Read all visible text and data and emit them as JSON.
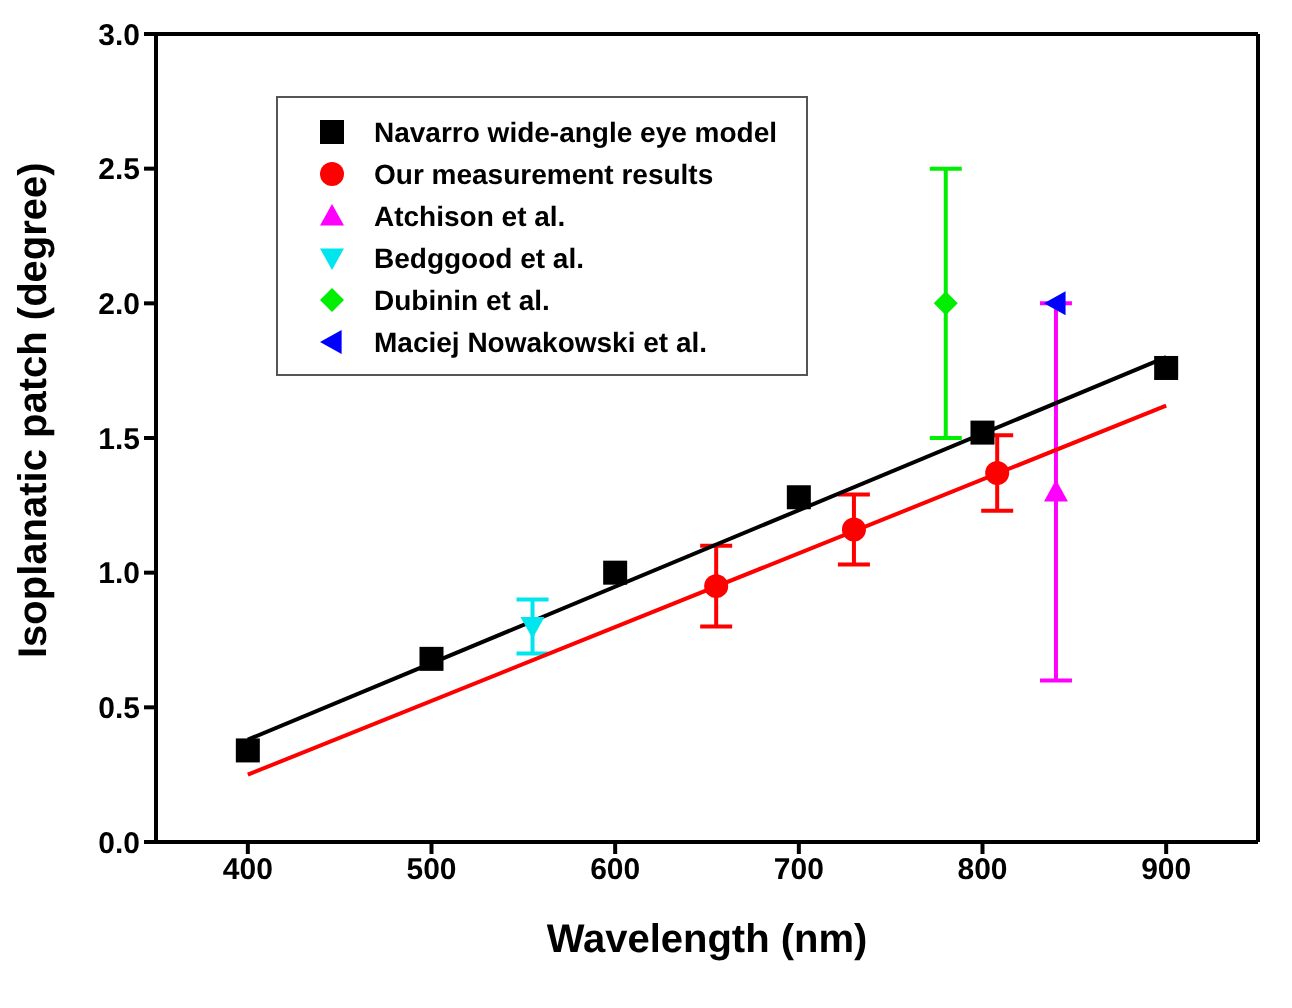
{
  "chart_data": {
    "type": "scatter",
    "xlabel": "Wavelength (nm)",
    "ylabel": "Isoplanatic patch (degree)",
    "xlim": [
      350,
      950
    ],
    "xticks": [
      400,
      500,
      600,
      700,
      800,
      900
    ],
    "ylim": [
      0,
      3
    ],
    "yticks": [
      {
        "value": 0,
        "label": "0.0"
      },
      {
        "value": 0.5,
        "label": "0.5"
      },
      {
        "value": 1,
        "label": "1.0"
      },
      {
        "value": 1.5,
        "label": "1.5"
      },
      {
        "value": 2,
        "label": "2.0"
      },
      {
        "value": 2.5,
        "label": "2.5"
      },
      {
        "value": 3,
        "label": "3.0"
      }
    ],
    "legend": "top left",
    "series": [
      {
        "name": "Navarro wide-angle eye model",
        "color": "#000000",
        "marker": "square",
        "x": [
          400,
          500,
          600,
          700,
          800,
          900
        ],
        "values": [
          0.34,
          0.68,
          1.0,
          1.28,
          1.52,
          1.76
        ]
      },
      {
        "name": "Our measurement results",
        "color": "#ff0000",
        "marker": "circle",
        "x": [
          655,
          730,
          808
        ],
        "values": [
          0.95,
          1.16,
          1.37
        ],
        "errors": [
          [
            0.8,
            1.1
          ],
          [
            1.03,
            1.29
          ],
          [
            1.23,
            1.51
          ]
        ]
      },
      {
        "name": "Atchison et al.",
        "color": "#ff00ff",
        "marker": "triangle",
        "x": [
          840
        ],
        "values": [
          1.3
        ],
        "errors": [
          [
            0.6,
            2.0
          ]
        ]
      },
      {
        "name": "Bedggood et al.",
        "color": "#00e5ee",
        "marker": "triangle-down",
        "x": [
          555
        ],
        "values": [
          0.8
        ],
        "errors": [
          [
            0.7,
            0.9
          ]
        ]
      },
      {
        "name": "Dubinin et al.",
        "color": "#00ee00",
        "marker": "diamond",
        "x": [
          780
        ],
        "values": [
          2.0
        ],
        "errors": [
          [
            1.5,
            2.5
          ]
        ]
      },
      {
        "name": "Maciej Nowakowski et al.",
        "color": "#0000ff",
        "marker": "triangle-left",
        "x": [
          840
        ],
        "values": [
          2.0
        ]
      },
      {
        "type": "line",
        "color": "#000000",
        "marker": "none",
        "x": [
          400,
          900
        ],
        "values": [
          0.38,
          1.8
        ]
      },
      {
        "type": "line",
        "color": "#ff0000",
        "marker": "none",
        "x": [
          400,
          900
        ],
        "values": [
          0.25,
          1.62
        ]
      }
    ]
  }
}
